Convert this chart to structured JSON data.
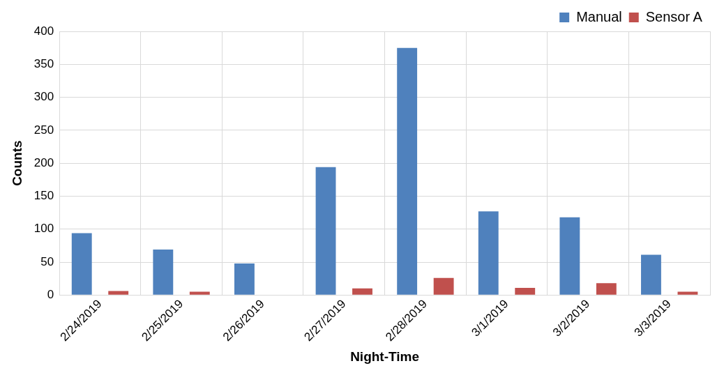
{
  "chart_data": {
    "type": "bar",
    "xlabel": "Night-Time",
    "ylabel": "Counts",
    "categories": [
      "2/24/2019",
      "2/25/2019",
      "2/26/2019",
      "2/27/2019",
      "2/28/2019",
      "3/1/2019",
      "3/2/2019",
      "3/3/2019"
    ],
    "series": [
      {
        "name": "Manual",
        "color": "#4f81bd",
        "values": [
          94,
          69,
          48,
          194,
          375,
          127,
          118,
          61
        ]
      },
      {
        "name": "Sensor A",
        "color": "#c0504d",
        "values": [
          6,
          5,
          0,
          10,
          26,
          11,
          18,
          5
        ]
      }
    ],
    "ylim": [
      0,
      400
    ],
    "yticks": [
      0,
      50,
      100,
      150,
      200,
      250,
      300,
      350,
      400
    ],
    "grid": true,
    "legend": "top right"
  }
}
